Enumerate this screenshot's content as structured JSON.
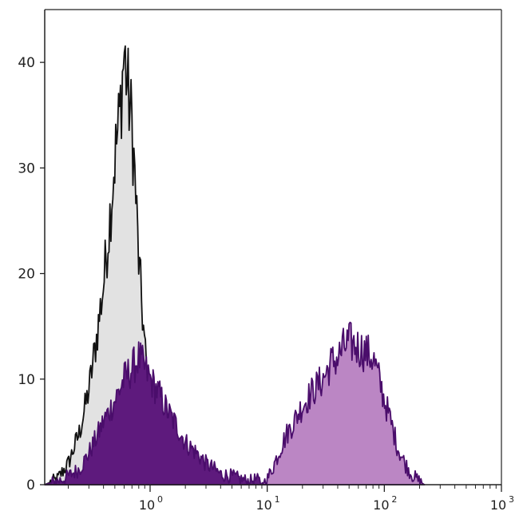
{
  "chart_data": {
    "type": "area",
    "title": "",
    "xlabel": "",
    "ylabel": "",
    "x_scale": "log",
    "xlim": [
      0.1259,
      1000
    ],
    "ylim": [
      0,
      45
    ],
    "grid": false,
    "legend": "none",
    "y_ticks": [
      {
        "value": 0,
        "label": "0"
      },
      {
        "value": 10,
        "label": "10"
      },
      {
        "value": 20,
        "label": "20"
      },
      {
        "value": 30,
        "label": "30"
      },
      {
        "value": 40,
        "label": "40"
      }
    ],
    "x_ticks": [
      {
        "value": 1,
        "base": "10",
        "exp": "0"
      },
      {
        "value": 10,
        "base": "10",
        "exp": "1"
      },
      {
        "value": 100,
        "base": "10",
        "exp": "2"
      },
      {
        "value": 1000,
        "base": "10",
        "exp": "3"
      }
    ],
    "series": [
      {
        "style": "gray-filled-black-outline",
        "fill": "#e2e2e2",
        "stroke": "#111111",
        "x": [
          0.126,
          0.16,
          0.2,
          0.25,
          0.3,
          0.35,
          0.4,
          0.45,
          0.5,
          0.55,
          0.6,
          0.65,
          0.7,
          0.75,
          0.8,
          0.85,
          0.9,
          0.95,
          1.0,
          1.1,
          1.2,
          1.35,
          1.5,
          1.7,
          2.0
        ],
        "y": [
          0,
          0.5,
          2,
          5,
          9,
          14,
          19,
          25,
          31,
          35,
          41,
          37,
          34,
          28,
          21,
          17,
          13,
          10,
          8,
          5,
          3,
          1.5,
          0.5,
          0.1,
          0
        ]
      },
      {
        "style": "dark-purple-filled",
        "fill": "#5e1a7d",
        "stroke": "#4a0d6b",
        "x": [
          0.126,
          0.18,
          0.25,
          0.3,
          0.35,
          0.4,
          0.45,
          0.5,
          0.6,
          0.7,
          0.8,
          0.9,
          1.0,
          1.2,
          1.4,
          1.7,
          2.0,
          2.5,
          3.0,
          3.5,
          4.0,
          5.0,
          6.0,
          7.0,
          8.0,
          9.0,
          10.0
        ],
        "y": [
          0,
          0.5,
          1.5,
          3,
          4.5,
          6,
          7,
          8,
          10,
          11,
          12,
          11,
          10,
          8.5,
          7,
          5.5,
          4,
          3,
          2,
          1.5,
          1,
          0.8,
          0.5,
          0.3,
          0.5,
          0.2,
          0
        ]
      },
      {
        "style": "light-purple-filled",
        "fill": "#bb86c4",
        "stroke": "#4a0d6b",
        "x": [
          9,
          10,
          11,
          12,
          13,
          15,
          17,
          20,
          25,
          30,
          35,
          40,
          45,
          50,
          60,
          70,
          80,
          90,
          100,
          110,
          120,
          130,
          150,
          170,
          200,
          220
        ],
        "y": [
          0,
          0.5,
          1.5,
          2.5,
          3.5,
          5,
          6,
          7.5,
          9,
          10,
          11.5,
          12,
          13,
          13.5,
          13,
          12.5,
          12,
          10,
          8,
          6.5,
          5,
          3.5,
          2,
          1,
          0.3,
          0
        ]
      }
    ]
  }
}
